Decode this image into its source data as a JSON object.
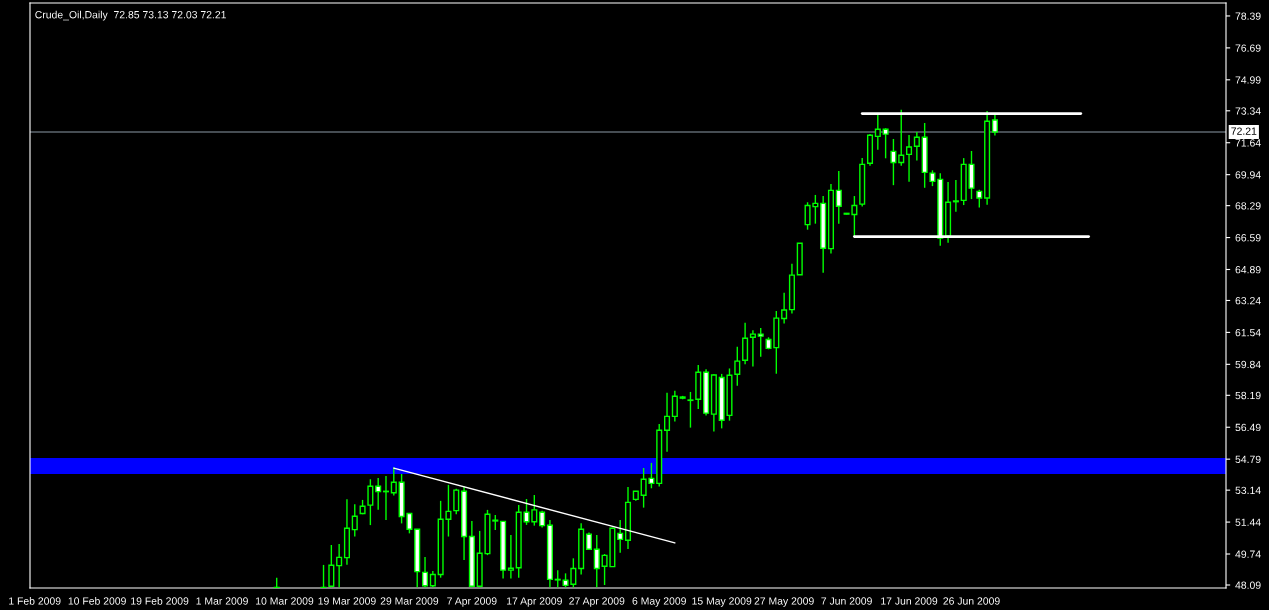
{
  "chart_data": {
    "type": "candlestick",
    "title": "Crude_Oil,Daily  72.85 73.13 72.03 72.21",
    "categories": [
      "1 Feb 2009",
      null,
      null,
      null,
      null,
      null,
      null,
      null,
      "10 Feb 2009",
      null,
      null,
      null,
      null,
      null,
      null,
      null,
      "19 Feb 2009",
      null,
      null,
      null,
      null,
      null,
      null,
      null,
      "1 Mar 2009",
      null,
      null,
      null,
      null,
      null,
      null,
      null,
      "10 Mar 2009",
      null,
      null,
      null,
      null,
      null,
      null,
      null,
      "19 Mar 2009",
      null,
      null,
      null,
      null,
      null,
      null,
      null,
      "29 Mar 2009",
      null,
      null,
      null,
      null,
      null,
      null,
      null,
      "7 Apr 2009",
      null,
      null,
      null,
      null,
      null,
      null,
      null,
      "17 Apr 2009",
      null,
      null,
      null,
      null,
      null,
      null,
      null,
      "27 Apr 2009",
      null,
      null,
      null,
      null,
      null,
      null,
      null,
      "6 May 2009",
      null,
      null,
      null,
      null,
      null,
      null,
      null,
      "15 May 2009",
      null,
      null,
      null,
      null,
      null,
      null,
      null,
      "27 May 2009",
      null,
      null,
      null,
      null,
      null,
      null,
      null,
      "7 Jun 2009",
      null,
      null,
      null,
      null,
      null,
      null,
      null,
      "17 Jun 2009",
      null,
      null,
      null,
      null,
      null,
      null,
      null,
      "26 Jun 2009",
      null,
      null,
      null,
      null,
      null,
      null,
      null,
      null,
      null,
      null,
      null,
      null,
      null,
      null,
      null,
      null,
      null,
      null,
      null,
      null,
      null,
      null,
      null,
      null,
      null,
      null,
      null,
      null,
      null,
      null,
      null,
      null
    ],
    "ohlc": [
      null,
      null,
      null,
      null,
      null,
      null,
      null,
      null,
      null,
      null,
      null,
      null,
      null,
      null,
      null,
      null,
      null,
      null,
      null,
      null,
      null,
      null,
      null,
      null,
      null,
      null,
      null,
      null,
      null,
      null,
      null,
      [
        47.95,
        48.47,
        47.94,
        47.96
      ],
      null,
      null,
      null,
      null,
      null,
      [
        47.95,
        49.16,
        47.94,
        47.96
      ],
      [
        48.02,
        50.22,
        47.97,
        49.14
      ],
      [
        49.12,
        50.27,
        47.97,
        49.56
      ],
      [
        49.55,
        52.65,
        49.17,
        51.11
      ],
      [
        51.04,
        52.39,
        50.67,
        51.75
      ],
      [
        51.9,
        52.62,
        51.86,
        52.28
      ],
      [
        52.34,
        53.72,
        51.28,
        53.35
      ],
      [
        53.35,
        53.79,
        52.09,
        53.06
      ],
      [
        53.06,
        53.89,
        51.55,
        53.08
      ],
      [
        53.0,
        54.36,
        52.85,
        53.56
      ],
      [
        53.56,
        54.0,
        51.37,
        51.74
      ],
      [
        51.9,
        51.9,
        50.84,
        51.06
      ],
      [
        51.06,
        51.06,
        47.97,
        48.8
      ],
      [
        48.76,
        49.58,
        47.97,
        48.05
      ],
      [
        48.05,
        48.84,
        47.97,
        48.65
      ],
      [
        48.65,
        52.57,
        48.48,
        51.59
      ],
      [
        51.59,
        53.42,
        50.67,
        52.01
      ],
      [
        52.05,
        53.21,
        51.86,
        53.14
      ],
      [
        53.08,
        53.33,
        49.42,
        50.67
      ],
      [
        50.67,
        51.5,
        47.97,
        48.02
      ],
      [
        48.02,
        50.97,
        47.97,
        49.78
      ],
      [
        49.76,
        52.09,
        49.68,
        51.86
      ],
      [
        51.5,
        51.82,
        51.02,
        51.54
      ],
      [
        51.48,
        51.48,
        48.44,
        48.88
      ],
      [
        48.88,
        50.75,
        48.44,
        48.98
      ],
      [
        49.01,
        52.35,
        48.48,
        51.96
      ],
      [
        51.96,
        52.67,
        51.29,
        51.46
      ],
      [
        51.46,
        52.88,
        51.25,
        52.09
      ],
      [
        51.96,
        52.05,
        51.15,
        51.25
      ],
      [
        51.27,
        51.55,
        47.97,
        48.39
      ],
      [
        48.39,
        48.88,
        47.97,
        48.36
      ],
      [
        48.34,
        48.71,
        47.97,
        48.07
      ],
      [
        48.13,
        49.51,
        47.97,
        48.97
      ],
      [
        48.97,
        51.38,
        48.65,
        51.06
      ],
      [
        50.79,
        50.88,
        49.95,
        49.99
      ],
      [
        49.99,
        50.75,
        47.97,
        48.97
      ],
      [
        49.09,
        49.74,
        48.09,
        49.67
      ],
      [
        49.07,
        51.15,
        49.05,
        51.11
      ],
      [
        50.84,
        51.55,
        49.81,
        50.52
      ],
      [
        50.47,
        53.31,
        50.01,
        52.49
      ],
      [
        52.65,
        53.08,
        52.58,
        53.08
      ],
      [
        52.87,
        54.32,
        52.21,
        53.72
      ],
      [
        53.77,
        54.59,
        53.24,
        53.5
      ],
      [
        53.5,
        56.66,
        53.33,
        56.33
      ],
      [
        56.33,
        58.32,
        55.19,
        57.07
      ],
      [
        57.07,
        58.43,
        56.8,
        58.14
      ],
      [
        58.1,
        58.16,
        57.98,
        58.04
      ],
      [
        57.94,
        58.37,
        56.47,
        57.92
      ],
      [
        57.98,
        59.81,
        57.46,
        59.42
      ],
      [
        59.42,
        59.58,
        57.11,
        57.24
      ],
      [
        57.19,
        59.31,
        56.26,
        59.27
      ],
      [
        59.14,
        59.33,
        56.43,
        56.86
      ],
      [
        57.12,
        59.62,
        56.84,
        59.26
      ],
      [
        59.31,
        60.77,
        58.7,
        60.01
      ],
      [
        60.06,
        62.05,
        59.85,
        61.23
      ],
      [
        61.28,
        61.65,
        59.72,
        61.45
      ],
      [
        61.45,
        61.78,
        60.25,
        61.34
      ],
      [
        61.16,
        61.28,
        60.64,
        60.69
      ],
      [
        60.73,
        62.68,
        59.34,
        62.3
      ],
      [
        62.28,
        63.65,
        62.02,
        62.73
      ],
      [
        62.75,
        65.19,
        62.54,
        64.59
      ],
      [
        64.61,
        66.29,
        64.61,
        66.29
      ],
      [
        67.28,
        68.47,
        67.01,
        68.3
      ],
      [
        68.24,
        68.86,
        67.33,
        68.41
      ],
      [
        68.41,
        68.8,
        64.72,
        66.02
      ],
      [
        66.0,
        69.44,
        65.74,
        69.1
      ],
      [
        69.1,
        70.13,
        67.33,
        68.26
      ],
      [
        67.88,
        67.9,
        67.82,
        67.84
      ],
      [
        67.82,
        68.8,
        66.64,
        68.3
      ],
      [
        68.37,
        70.82,
        68.24,
        70.49
      ],
      [
        70.55,
        72.1,
        70.42,
        72.04
      ],
      [
        71.98,
        73.15,
        71.26,
        72.36
      ],
      [
        72.36,
        72.41,
        70.81,
        72.1
      ],
      [
        71.18,
        71.84,
        69.38,
        70.59
      ],
      [
        70.59,
        73.39,
        70.42,
        70.97
      ],
      [
        71.02,
        72.05,
        69.56,
        71.41
      ],
      [
        71.45,
        72.21,
        70.69,
        71.93
      ],
      [
        71.93,
        72.69,
        69.24,
        70.06
      ],
      [
        70.02,
        70.17,
        69.33,
        69.58
      ],
      [
        69.69,
        70.02,
        66.16,
        66.57
      ],
      [
        66.67,
        69.55,
        66.31,
        68.47
      ],
      [
        68.5,
        69.66,
        67.96,
        68.54
      ],
      [
        68.57,
        70.82,
        68.32,
        70.49
      ],
      [
        70.49,
        71.2,
        68.64,
        69.22
      ],
      [
        69.05,
        69.14,
        68.19,
        68.7
      ],
      [
        68.7,
        73.33,
        68.34,
        72.78
      ],
      [
        72.85,
        73.13,
        72.03,
        72.21
      ],
      null,
      null,
      null,
      null,
      null,
      null,
      null,
      null,
      null,
      null,
      null,
      null,
      null,
      null,
      null,
      null,
      null,
      null,
      null,
      null,
      null,
      null,
      null,
      null,
      null,
      null,
      null,
      null,
      null
    ],
    "color": "#00ff00",
    "colors": [
      null,
      null,
      null,
      null,
      null,
      null,
      null,
      null,
      null,
      null,
      null,
      null,
      null,
      null,
      null,
      null,
      null,
      null,
      null,
      null,
      null,
      null,
      null,
      null,
      null,
      null,
      null,
      null,
      null,
      null,
      null,
      "#000000",
      null,
      null,
      null,
      null,
      null,
      "#000000",
      "#000000",
      "#000000",
      "#000000",
      "#000000",
      "#000000",
      "#000000",
      "#ffffff",
      "#000000",
      "#000000",
      "#ffffff",
      "#ffffff",
      "#ffffff",
      "#ffffff",
      "#000000",
      "#000000",
      "#000000",
      "#000000",
      "#ffffff",
      "#ffffff",
      "#000000",
      "#000000",
      "#000000",
      "#ffffff",
      "#000000",
      "#000000",
      "#ffffff",
      "#000000",
      "#ffffff",
      "#ffffff",
      "#ffffff",
      "#ffffff",
      "#000000",
      "#000000",
      "#ffffff",
      "#ffffff",
      "#000000",
      "#000000",
      "#ffffff",
      "#000000",
      "#000000",
      "#000000",
      "#ffffff",
      "#000000",
      "#000000",
      "#000000",
      "#000000",
      "#ffffff",
      "#000000",
      "#ffffff",
      "#000000",
      "#ffffff",
      "#000000",
      "#000000",
      "#000000",
      "#000000",
      "#ffffff",
      "#ffffff",
      "#000000",
      "#000000",
      "#000000",
      "#000000",
      "#000000",
      "#000000",
      "#ffffff",
      "#000000",
      "#ffffff",
      "#ffffff",
      "#000000",
      "#000000",
      "#000000",
      "#000000",
      "#ffffff",
      "#ffffff",
      "#000000",
      "#000000",
      "#000000",
      "#ffffff",
      "#ffffff",
      "#ffffff",
      "#000000",
      "#000000",
      "#000000",
      "#ffffff",
      "#ffffff",
      "#000000",
      "#ffffff",
      null,
      null,
      null,
      null,
      null,
      null,
      null,
      null,
      null,
      null,
      null,
      null,
      null,
      null,
      null,
      null,
      null,
      null,
      null,
      null,
      null,
      null,
      null,
      null,
      null,
      null,
      null,
      null,
      null
    ],
    "series": [
      {
        "type": "line",
        "color": "#ffffff",
        "values": [
          null,
          null,
          null,
          null,
          null,
          null,
          null,
          null,
          null,
          null,
          null,
          null,
          null,
          null,
          null,
          null,
          null,
          null,
          null,
          null,
          null,
          null,
          null,
          null,
          null,
          null,
          null,
          null,
          null,
          null,
          null,
          null,
          null,
          null,
          null,
          null,
          null,
          null,
          null,
          null,
          null,
          null,
          null,
          null,
          null,
          null,
          54.31,
          null,
          null,
          null,
          null,
          null,
          null,
          null,
          null,
          null,
          null,
          null,
          null,
          null,
          null,
          null,
          null,
          null,
          null,
          null,
          null,
          null,
          null,
          null,
          null,
          null,
          null,
          null,
          null,
          null,
          null,
          null,
          null,
          null,
          null,
          null,
          50.33,
          null,
          null,
          null,
          null,
          null,
          null,
          null,
          null,
          null,
          null,
          null,
          null,
          null,
          null,
          null,
          null,
          null,
          null,
          null,
          null,
          null,
          null,
          null,
          null,
          null,
          null,
          null,
          null,
          null,
          null,
          null,
          null,
          null,
          null,
          null,
          null,
          null,
          null,
          null,
          null,
          null,
          null,
          null,
          null,
          null,
          null,
          null,
          null,
          null,
          null,
          null,
          null,
          null,
          null,
          null,
          null,
          null,
          null,
          null,
          null,
          null,
          null,
          null,
          null,
          null,
          null,
          null,
          null,
          null,
          null
        ]
      },
      {
        "type": "line",
        "color": "#ffffff",
        "values": [
          null,
          null,
          null,
          null,
          null,
          null,
          null,
          null,
          null,
          null,
          null,
          null,
          null,
          null,
          null,
          null,
          null,
          null,
          null,
          null,
          null,
          null,
          null,
          null,
          null,
          null,
          null,
          null,
          null,
          null,
          null,
          null,
          null,
          null,
          null,
          null,
          null,
          null,
          null,
          null,
          null,
          null,
          null,
          null,
          null,
          null,
          null,
          null,
          null,
          null,
          null,
          null,
          null,
          null,
          null,
          null,
          null,
          null,
          null,
          null,
          null,
          null,
          null,
          null,
          null,
          null,
          null,
          null,
          null,
          null,
          null,
          null,
          null,
          null,
          null,
          null,
          null,
          null,
          null,
          null,
          null,
          null,
          null,
          null,
          null,
          null,
          null,
          null,
          null,
          null,
          null,
          null,
          null,
          null,
          null,
          null,
          null,
          null,
          null,
          null,
          null,
          null,
          null,
          null,
          null,
          null,
          73.19,
          null,
          null,
          null,
          null,
          null,
          null,
          null,
          null,
          null,
          null,
          null,
          null,
          null,
          null,
          null,
          null,
          null,
          null,
          null,
          null,
          null,
          null,
          null,
          null,
          null,
          null,
          null,
          73.19,
          null,
          null,
          null,
          null,
          null,
          null,
          null,
          null,
          null,
          null,
          null,
          null,
          null,
          null,
          null,
          null,
          null,
          null
        ]
      },
      {
        "type": "line",
        "color": "#ffffff",
        "values": [
          null,
          null,
          null,
          null,
          null,
          null,
          null,
          null,
          null,
          null,
          null,
          null,
          null,
          null,
          null,
          null,
          null,
          null,
          null,
          null,
          null,
          null,
          null,
          null,
          null,
          null,
          null,
          null,
          null,
          null,
          null,
          null,
          null,
          null,
          null,
          null,
          null,
          null,
          null,
          null,
          null,
          null,
          null,
          null,
          null,
          null,
          null,
          null,
          null,
          null,
          null,
          null,
          null,
          null,
          null,
          null,
          null,
          null,
          null,
          null,
          null,
          null,
          null,
          null,
          null,
          null,
          null,
          null,
          null,
          null,
          null,
          null,
          null,
          null,
          null,
          null,
          null,
          null,
          null,
          null,
          null,
          null,
          null,
          null,
          null,
          null,
          null,
          null,
          null,
          null,
          null,
          null,
          null,
          null,
          null,
          null,
          null,
          null,
          null,
          null,
          null,
          null,
          null,
          null,
          null,
          66.64,
          null,
          null,
          null,
          null,
          null,
          null,
          null,
          null,
          null,
          null,
          null,
          null,
          null,
          null,
          null,
          null,
          null,
          null,
          null,
          null,
          null,
          null,
          null,
          null,
          null,
          null,
          null,
          null,
          null,
          66.64,
          null,
          null,
          null,
          null,
          null,
          null,
          null,
          null,
          null,
          null,
          null,
          null,
          null,
          null,
          null,
          null,
          null
        ]
      }
    ],
    "bands": [
      {
        "axis": "y",
        "from": 54.0,
        "to": 54.85,
        "color": "#0000ff"
      }
    ],
    "ref_lines": [
      {
        "axis": "y",
        "value": 72.21,
        "label": "72.21",
        "color": "#8c99a6"
      }
    ],
    "ylim": [
      47.93,
      79.08
    ],
    "yticks": [
      48.09,
      49.74,
      51.44,
      53.14,
      54.79,
      56.49,
      58.19,
      59.84,
      61.54,
      63.24,
      64.89,
      66.59,
      68.29,
      69.94,
      71.64,
      73.34,
      74.99,
      76.69,
      78.39
    ],
    "grid": false,
    "legend": false
  }
}
